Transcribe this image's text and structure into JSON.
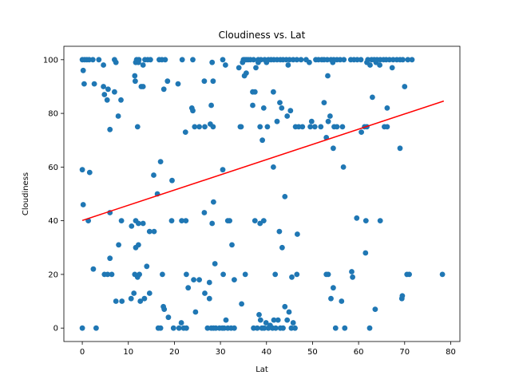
{
  "chart_data": {
    "type": "scatter",
    "title": "Cloudiness vs. Lat",
    "xlabel": "Lat",
    "ylabel": "Cloudiness",
    "xlim": [
      -4,
      82
    ],
    "ylim": [
      -5,
      105
    ],
    "xticks": [
      0,
      10,
      20,
      30,
      40,
      50,
      60,
      70,
      80
    ],
    "yticks": [
      0,
      20,
      40,
      60,
      80,
      100
    ],
    "grid": false,
    "point_color": "#1f77b4",
    "line_color": "#ff0000",
    "regression": {
      "x": [
        0,
        78.5
      ],
      "y": [
        40.1,
        84.6
      ]
    },
    "points": [
      [
        0,
        100
      ],
      [
        0.5,
        100
      ],
      [
        1,
        100
      ],
      [
        1.5,
        100
      ],
      [
        2.3,
        100
      ],
      [
        3.6,
        100
      ],
      [
        7,
        100
      ],
      [
        11.8,
        100
      ],
      [
        12.3,
        100
      ],
      [
        13.6,
        100
      ],
      [
        14.2,
        100
      ],
      [
        14.8,
        100
      ],
      [
        16.7,
        100
      ],
      [
        17.3,
        100
      ],
      [
        18,
        100
      ],
      [
        21.7,
        100
      ],
      [
        24,
        100
      ],
      [
        30.5,
        100
      ],
      [
        35,
        100
      ],
      [
        35.3,
        100
      ],
      [
        35.6,
        100
      ],
      [
        36,
        100
      ],
      [
        36.5,
        100
      ],
      [
        37.2,
        100
      ],
      [
        38.2,
        100
      ],
      [
        38.8,
        100
      ],
      [
        39.6,
        100
      ],
      [
        40.4,
        100
      ],
      [
        41,
        100
      ],
      [
        41.6,
        100
      ],
      [
        42.3,
        100
      ],
      [
        43,
        100
      ],
      [
        43.6,
        100
      ],
      [
        44.3,
        100
      ],
      [
        45,
        100
      ],
      [
        45.8,
        100
      ],
      [
        46.6,
        100
      ],
      [
        47.5,
        100
      ],
      [
        48.6,
        100
      ],
      [
        50.7,
        100
      ],
      [
        51.3,
        100
      ],
      [
        52,
        100
      ],
      [
        52.5,
        100
      ],
      [
        53.2,
        100
      ],
      [
        54,
        100
      ],
      [
        54.6,
        100
      ],
      [
        55.3,
        100
      ],
      [
        56,
        100
      ],
      [
        56.8,
        100
      ],
      [
        58.3,
        100
      ],
      [
        59,
        100
      ],
      [
        59.7,
        100
      ],
      [
        60.5,
        100
      ],
      [
        62,
        100
      ],
      [
        62.8,
        100
      ],
      [
        63.4,
        100
      ],
      [
        64,
        100
      ],
      [
        64.7,
        100
      ],
      [
        65.4,
        100
      ],
      [
        66,
        100
      ],
      [
        66.7,
        100
      ],
      [
        67.5,
        100
      ],
      [
        68.3,
        100
      ],
      [
        69,
        100
      ],
      [
        69.6,
        100
      ],
      [
        70.7,
        100
      ],
      [
        71.6,
        100
      ],
      [
        0.2,
        96
      ],
      [
        4.6,
        98
      ],
      [
        7.3,
        99
      ],
      [
        11.6,
        99
      ],
      [
        12.2,
        99
      ],
      [
        13.2,
        98
      ],
      [
        28.2,
        99
      ],
      [
        31.1,
        98
      ],
      [
        34,
        97
      ],
      [
        34.8,
        99
      ],
      [
        37.7,
        97
      ],
      [
        38.2,
        99
      ],
      [
        40,
        99
      ],
      [
        44.7,
        98
      ],
      [
        49.3,
        99
      ],
      [
        54.4,
        99
      ],
      [
        61.8,
        99
      ],
      [
        62.5,
        98
      ],
      [
        63.8,
        99
      ],
      [
        64.6,
        98
      ],
      [
        67.3,
        97
      ],
      [
        0.4,
        91
      ],
      [
        2.6,
        91
      ],
      [
        4.6,
        90
      ],
      [
        5.6,
        89
      ],
      [
        7,
        88
      ],
      [
        11.4,
        94
      ],
      [
        12.8,
        90
      ],
      [
        13.2,
        90
      ],
      [
        18.5,
        92
      ],
      [
        20.8,
        91
      ],
      [
        26.5,
        92
      ],
      [
        28.4,
        92
      ],
      [
        35.2,
        94
      ],
      [
        35.6,
        95
      ],
      [
        37,
        88
      ],
      [
        37.5,
        88
      ],
      [
        41.5,
        88
      ],
      [
        53.3,
        94
      ],
      [
        70,
        90
      ],
      [
        4.8,
        87
      ],
      [
        5.4,
        85
      ],
      [
        7.8,
        79
      ],
      [
        8.4,
        85
      ],
      [
        11.5,
        92
      ],
      [
        17.7,
        89
      ],
      [
        23.8,
        82
      ],
      [
        24,
        81
      ],
      [
        28,
        83
      ],
      [
        39.4,
        82
      ],
      [
        42.3,
        77
      ],
      [
        42.9,
        84
      ],
      [
        43.3,
        82
      ],
      [
        44.5,
        79
      ],
      [
        45.2,
        81
      ],
      [
        52.5,
        84
      ],
      [
        53.4,
        77
      ],
      [
        53.8,
        79
      ],
      [
        66.2,
        82
      ],
      [
        63,
        86
      ],
      [
        6,
        74
      ],
      [
        12,
        75
      ],
      [
        22.4,
        73
      ],
      [
        24.4,
        75
      ],
      [
        25.4,
        75
      ],
      [
        26.6,
        75
      ],
      [
        27.8,
        76
      ],
      [
        28.4,
        75
      ],
      [
        34.3,
        75
      ],
      [
        34.5,
        75
      ],
      [
        37,
        83
      ],
      [
        38.6,
        75
      ],
      [
        39.1,
        70
      ],
      [
        40.2,
        75
      ],
      [
        46.3,
        75
      ],
      [
        47,
        75
      ],
      [
        47.8,
        75
      ],
      [
        49.5,
        75
      ],
      [
        49.8,
        77
      ],
      [
        50.5,
        75
      ],
      [
        51.8,
        75
      ],
      [
        53,
        71
      ],
      [
        54.7,
        75
      ],
      [
        55.3,
        75
      ],
      [
        56.5,
        75
      ],
      [
        60.6,
        73
      ],
      [
        61.3,
        75
      ],
      [
        61.8,
        75
      ],
      [
        65.6,
        75
      ],
      [
        66.2,
        75
      ],
      [
        0,
        59
      ],
      [
        1.6,
        58
      ],
      [
        15.5,
        57
      ],
      [
        17,
        62
      ],
      [
        19.5,
        55
      ],
      [
        30.5,
        59
      ],
      [
        41.5,
        60
      ],
      [
        54.5,
        67
      ],
      [
        56.7,
        60
      ],
      [
        69,
        67
      ],
      [
        0.2,
        46
      ],
      [
        1.3,
        40
      ],
      [
        6,
        43
      ],
      [
        8.5,
        40
      ],
      [
        11.6,
        40
      ],
      [
        12.2,
        39
      ],
      [
        13.2,
        39
      ],
      [
        14.6,
        36
      ],
      [
        16.3,
        50
      ],
      [
        19.4,
        40
      ],
      [
        21.6,
        40
      ],
      [
        22.5,
        40
      ],
      [
        26.5,
        43
      ],
      [
        28.2,
        39
      ],
      [
        28.5,
        47
      ],
      [
        31.6,
        40
      ],
      [
        32,
        40
      ],
      [
        37.5,
        40
      ],
      [
        38.6,
        39
      ],
      [
        39.4,
        40
      ],
      [
        42.8,
        36
      ],
      [
        44,
        49
      ],
      [
        46.7,
        35
      ],
      [
        59.6,
        41
      ],
      [
        61.6,
        40
      ],
      [
        64.7,
        40
      ],
      [
        2.4,
        22
      ],
      [
        4.8,
        20
      ],
      [
        5.5,
        20
      ],
      [
        6,
        26
      ],
      [
        6.4,
        20
      ],
      [
        7.9,
        31
      ],
      [
        10.7,
        38
      ],
      [
        11.4,
        20
      ],
      [
        11.6,
        30
      ],
      [
        12.2,
        31
      ],
      [
        12,
        19
      ],
      [
        12.4,
        20
      ],
      [
        14,
        23
      ],
      [
        15.6,
        36
      ],
      [
        17.4,
        20
      ],
      [
        22.6,
        20
      ],
      [
        24.2,
        18
      ],
      [
        25.4,
        18
      ],
      [
        27.6,
        17
      ],
      [
        28.8,
        24
      ],
      [
        30.6,
        20
      ],
      [
        32.5,
        31
      ],
      [
        33,
        18
      ],
      [
        35.4,
        20
      ],
      [
        41.9,
        20
      ],
      [
        43.4,
        30
      ],
      [
        45.5,
        19
      ],
      [
        46.6,
        20
      ],
      [
        53,
        20
      ],
      [
        53.4,
        20
      ],
      [
        54.5,
        15
      ],
      [
        58.5,
        21
      ],
      [
        58.7,
        19
      ],
      [
        61.5,
        28
      ],
      [
        69.5,
        12
      ],
      [
        70.5,
        20
      ],
      [
        71,
        20
      ],
      [
        78.2,
        20
      ],
      [
        0,
        0
      ],
      [
        3,
        0
      ],
      [
        7.3,
        10
      ],
      [
        8.6,
        10
      ],
      [
        10.6,
        11
      ],
      [
        11.2,
        13
      ],
      [
        12.6,
        10
      ],
      [
        13.5,
        11
      ],
      [
        14.6,
        13
      ],
      [
        16.5,
        0
      ],
      [
        17,
        0
      ],
      [
        17.6,
        8
      ],
      [
        17.8,
        7
      ],
      [
        18.7,
        4
      ],
      [
        19.8,
        0
      ],
      [
        21,
        0
      ],
      [
        21.5,
        2
      ],
      [
        22,
        0
      ],
      [
        22.6,
        0
      ],
      [
        23,
        15
      ],
      [
        24.6,
        6
      ],
      [
        26.6,
        13
      ],
      [
        27.2,
        0
      ],
      [
        27.6,
        11
      ],
      [
        28,
        0
      ],
      [
        28.5,
        0
      ],
      [
        29,
        0
      ],
      [
        29.8,
        0
      ],
      [
        30.4,
        0
      ],
      [
        30.8,
        0
      ],
      [
        31.2,
        3
      ],
      [
        31.6,
        0
      ],
      [
        32.3,
        0
      ],
      [
        33,
        0
      ],
      [
        34.6,
        9
      ],
      [
        37.2,
        0
      ],
      [
        38,
        0
      ],
      [
        38.4,
        5
      ],
      [
        38.7,
        3
      ],
      [
        39,
        0
      ],
      [
        39.5,
        0
      ],
      [
        39.9,
        2
      ],
      [
        40.4,
        0
      ],
      [
        40.8,
        1
      ],
      [
        41.3,
        0
      ],
      [
        41.6,
        3
      ],
      [
        42,
        0
      ],
      [
        42.5,
        3
      ],
      [
        43,
        0
      ],
      [
        43.6,
        0
      ],
      [
        44,
        8
      ],
      [
        44.5,
        3
      ],
      [
        44.9,
        6
      ],
      [
        45.4,
        0
      ],
      [
        45.8,
        2
      ],
      [
        46.2,
        0
      ],
      [
        54,
        11
      ],
      [
        55,
        0
      ],
      [
        56.3,
        10
      ],
      [
        57,
        0
      ],
      [
        62.4,
        0
      ],
      [
        63.6,
        7
      ],
      [
        69.4,
        11
      ]
    ]
  }
}
